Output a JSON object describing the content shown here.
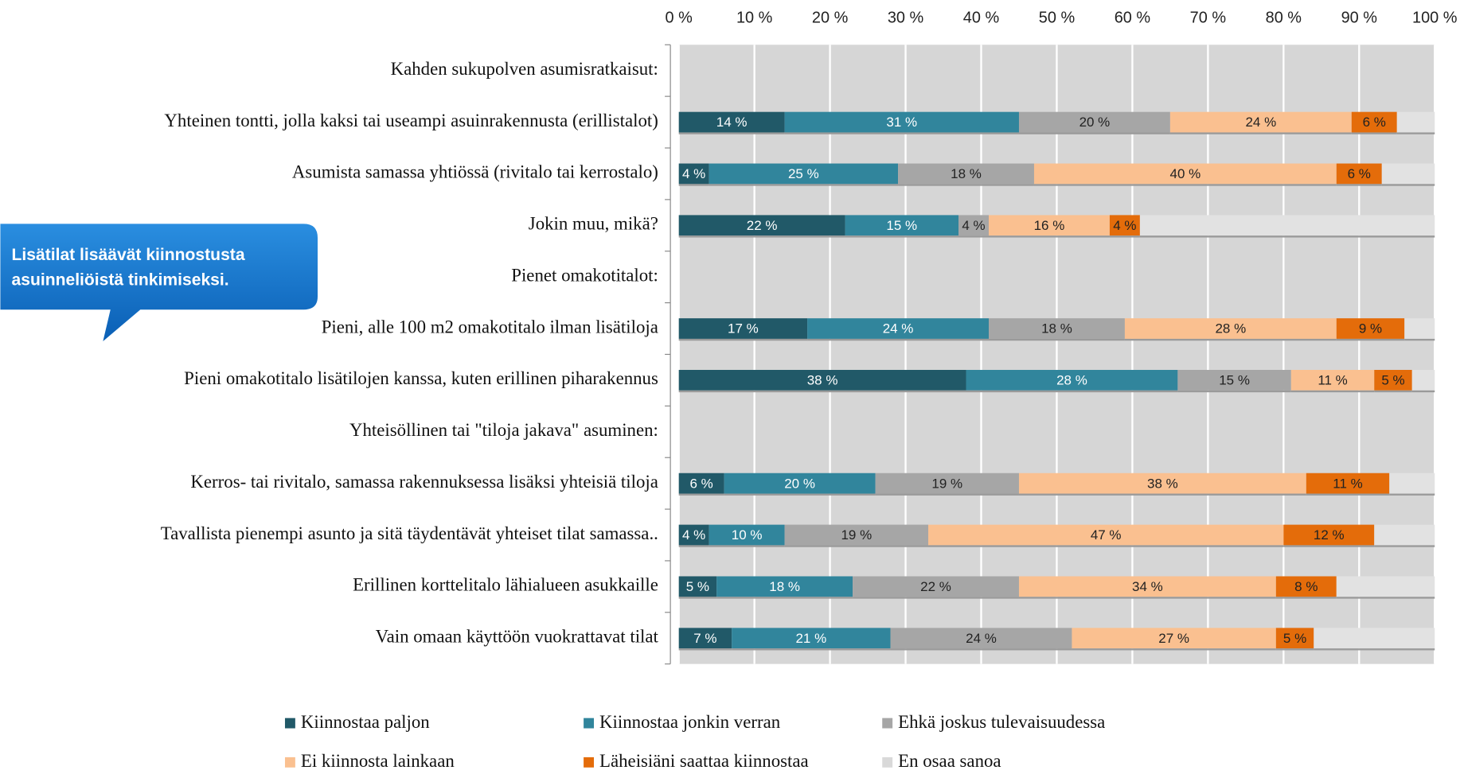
{
  "chart_data": {
    "type": "stacked_barh",
    "annotation": "Lisätilat lisäävät kiinnostusta asuinneliöistä tinkimiseksi.",
    "categories": [
      "Kahden sukupolven asumisratkaisut:",
      "Yhteinen tontti, jolla kaksi tai useampi asuinrakennusta (erillistalot)",
      "Asumista samassa yhtiössä (rivitalo tai kerrostalo)",
      "Jokin muu, mikä?",
      "Pienet omakotitalot:",
      "Pieni, alle 100 m2 omakotitalo ilman lisätiloja",
      "Pieni omakotitalo lisätilojen kanssa, kuten erillinen piharakennus",
      "Yhteisöllinen tai \"tiloja jakava\" asuminen:",
      "Kerros- tai rivitalo, samassa rakennuksessa lisäksi yhteisiä tiloja",
      "Tavallista pienempi asunto ja sitä täydentävät yhteiset tilat samassa..",
      "Erillinen korttelitalo lähialueen asukkaille",
      "Vain omaan käyttöön vuokrattavat tilat"
    ],
    "series": [
      {
        "name": "Kiinnostaa paljon",
        "color": "#215968",
        "values": [
          null,
          14,
          4,
          22,
          null,
          17,
          38,
          null,
          6,
          4,
          5,
          7
        ],
        "value_labels": [
          null,
          "14 %",
          "4 %",
          "22 %",
          null,
          "17 %",
          "38 %",
          null,
          "6 %",
          "4 %",
          "5 %",
          "7 %"
        ]
      },
      {
        "name": "Kiinnostaa jonkin verran",
        "color": "#31859c",
        "values": [
          null,
          31,
          25,
          15,
          null,
          24,
          28,
          null,
          20,
          10,
          18,
          21
        ],
        "value_labels": [
          null,
          "31 %",
          "25 %",
          "15 %",
          null,
          "24 %",
          "28 %",
          null,
          "20 %",
          "10 %",
          "18 %",
          "21 %"
        ]
      },
      {
        "name": "Ehkä joskus tulevaisuudessa",
        "color": "#a6a6a6",
        "values": [
          null,
          20,
          18,
          4,
          null,
          18,
          15,
          null,
          19,
          19,
          22,
          24
        ],
        "value_labels": [
          null,
          "20 %",
          "18 %",
          "4 %",
          null,
          "18 %",
          "15 %",
          null,
          "19 %",
          "19 %",
          "22 %",
          "24 %"
        ]
      },
      {
        "name": "Ei kiinnosta lainkaan",
        "color": "#fac090",
        "values": [
          null,
          24,
          40,
          16,
          null,
          28,
          11,
          null,
          38,
          47,
          34,
          27
        ],
        "value_labels": [
          null,
          "24 %",
          "40 %",
          "16 %",
          null,
          "28 %",
          "11 %",
          null,
          "38 %",
          "47 %",
          "34 %",
          "27 %"
        ]
      },
      {
        "name": "Läheisiäni saattaa kiinnostaa",
        "color": "#e46c0a",
        "values": [
          null,
          6,
          6,
          4,
          null,
          9,
          5,
          null,
          11,
          12,
          8,
          5
        ],
        "value_labels": [
          null,
          "6 %",
          "6 %",
          "4 %",
          null,
          "9 %",
          "5 %",
          null,
          "11 %",
          "12 %",
          "8 %",
          "5 %"
        ]
      },
      {
        "name": "En osaa sanoa",
        "color": "#e2e2e2",
        "values": [
          null,
          5,
          7,
          39,
          null,
          4,
          3,
          null,
          6,
          8,
          13,
          16
        ]
      }
    ],
    "xlim": [
      0,
      100
    ],
    "xticks": [
      {
        "value": 0,
        "label": "0 %"
      },
      {
        "value": 10,
        "label": "10 %"
      },
      {
        "value": 20,
        "label": "20 %"
      },
      {
        "value": 30,
        "label": "30 %"
      },
      {
        "value": 40,
        "label": "40 %"
      },
      {
        "value": 50,
        "label": "50 %"
      },
      {
        "value": 60,
        "label": "60 %"
      },
      {
        "value": 70,
        "label": "70 %"
      },
      {
        "value": 80,
        "label": "80 %"
      },
      {
        "value": 90,
        "label": "90 %"
      },
      {
        "value": 100,
        "label": "100 %"
      }
    ],
    "grid": true,
    "legend": "bottom"
  }
}
